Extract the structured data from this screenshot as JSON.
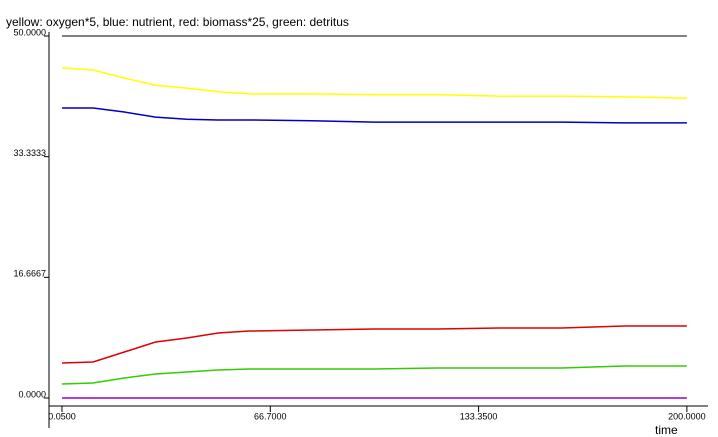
{
  "chart_data": {
    "type": "line",
    "title": "yellow: oxygen*5, blue: nutrient, red: biomass*25, green: detritus",
    "x_label": "time",
    "x": [
      0.05,
      10,
      20,
      30,
      40,
      50,
      60,
      80,
      100,
      120,
      140,
      160,
      180,
      200
    ],
    "series": [
      {
        "color": "#ffff00",
        "values": [
          45.6,
          45.3,
          44.2,
          43.2,
          42.8,
          42.3,
          42.0,
          42.0,
          41.9,
          41.9,
          41.7,
          41.7,
          41.6,
          41.4
        ]
      },
      {
        "color": "#0000c0",
        "values": [
          40.05,
          40.05,
          39.5,
          38.8,
          38.5,
          38.4,
          38.4,
          38.3,
          38.1,
          38.1,
          38.1,
          38.1,
          38.0,
          38.0
        ]
      },
      {
        "color": "#e00000",
        "values": [
          4.83,
          4.97,
          6.35,
          7.73,
          8.29,
          8.98,
          9.25,
          9.39,
          9.53,
          9.53,
          9.67,
          9.67,
          9.94,
          9.94
        ]
      },
      {
        "color": "#33cc00",
        "values": [
          1.93,
          2.07,
          2.76,
          3.31,
          3.59,
          3.87,
          4.0,
          4.0,
          4.0,
          4.14,
          4.14,
          4.14,
          4.42,
          4.42
        ]
      },
      {
        "color": "#9900cc",
        "values": [
          0,
          0,
          0,
          0,
          0,
          0,
          0,
          0,
          0,
          0,
          0,
          0,
          0,
          0
        ]
      }
    ],
    "xlim": [
      -4.1,
      204.2
    ],
    "ylim": [
      0,
      50
    ],
    "xticks": [
      {
        "value": 0.05,
        "label": "0.0500"
      },
      {
        "value": 66.7,
        "label": "66.7000"
      },
      {
        "value": 133.35,
        "label": "133.3500"
      },
      {
        "value": 200,
        "label": "200.0000"
      }
    ],
    "yticks": [
      {
        "value": 0,
        "label": "0.0000"
      },
      {
        "value": 16.6667,
        "label": "16.6667"
      },
      {
        "value": 33.3333,
        "label": "33.3333"
      },
      {
        "value": 50,
        "label": "50.0000"
      }
    ]
  }
}
